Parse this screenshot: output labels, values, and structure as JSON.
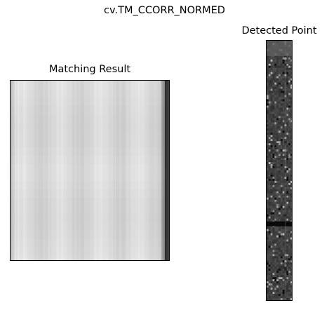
{
  "figure": {
    "suptitle": "cv.TM_CCORR_NORMED"
  },
  "chart_data": [
    {
      "type": "heatmap",
      "title": "Matching Result",
      "xlabel": "",
      "ylabel": "",
      "grid": false,
      "axis_ticks": false,
      "colormap": "gray",
      "description_values": {
        "background_level": 0.9,
        "right_edge_dark_band_level": 0.15
      }
    },
    {
      "type": "heatmap",
      "title": "Detected Point",
      "xlabel": "",
      "ylabel": "",
      "grid": false,
      "axis_ticks": false,
      "colormap": "gray"
    }
  ],
  "colors": {
    "frame": "#000000",
    "background": "#ffffff"
  }
}
